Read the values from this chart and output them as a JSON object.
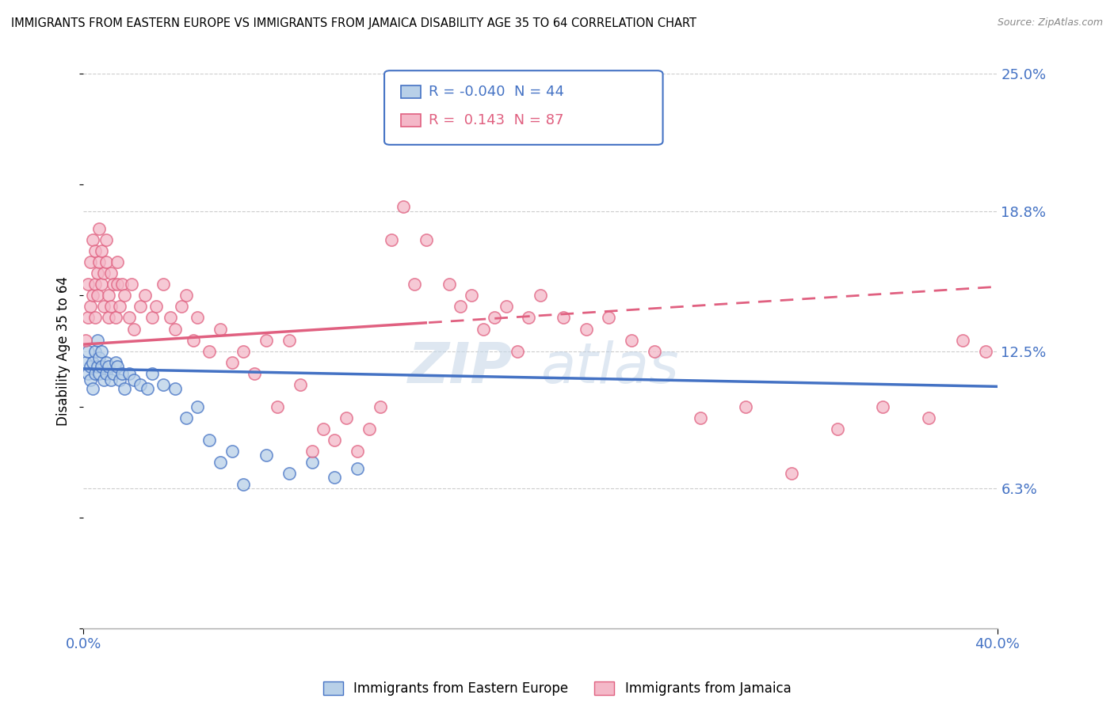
{
  "title": "IMMIGRANTS FROM EASTERN EUROPE VS IMMIGRANTS FROM JAMAICA DISABILITY AGE 35 TO 64 CORRELATION CHART",
  "source": "Source: ZipAtlas.com",
  "ylabel": "Disability Age 35 to 64",
  "xlim": [
    0.0,
    0.4
  ],
  "ylim": [
    0.0,
    0.25
  ],
  "ytick_vals": [
    0.063,
    0.125,
    0.188,
    0.25
  ],
  "ytick_labels": [
    "6.3%",
    "12.5%",
    "18.8%",
    "25.0%"
  ],
  "series1_fill": "#b8d0e8",
  "series1_edge": "#4472c4",
  "series2_fill": "#f4b8c8",
  "series2_edge": "#e06080",
  "trend1_color": "#4472c4",
  "trend2_color": "#e06080",
  "R1": -0.04,
  "N1": 44,
  "R2": 0.143,
  "N2": 87,
  "legend1": "Immigrants from Eastern Europe",
  "legend2": "Immigrants from Jamaica",
  "ee_x": [
    0.001,
    0.002,
    0.002,
    0.003,
    0.003,
    0.004,
    0.004,
    0.005,
    0.005,
    0.006,
    0.006,
    0.007,
    0.007,
    0.008,
    0.008,
    0.009,
    0.01,
    0.01,
    0.011,
    0.012,
    0.013,
    0.014,
    0.015,
    0.016,
    0.017,
    0.018,
    0.02,
    0.022,
    0.025,
    0.028,
    0.03,
    0.035,
    0.04,
    0.045,
    0.05,
    0.055,
    0.06,
    0.065,
    0.07,
    0.08,
    0.09,
    0.1,
    0.11,
    0.12
  ],
  "ee_y": [
    0.12,
    0.125,
    0.115,
    0.118,
    0.112,
    0.12,
    0.108,
    0.115,
    0.125,
    0.118,
    0.13,
    0.115,
    0.122,
    0.118,
    0.125,
    0.112,
    0.115,
    0.12,
    0.118,
    0.112,
    0.115,
    0.12,
    0.118,
    0.112,
    0.115,
    0.108,
    0.115,
    0.112,
    0.11,
    0.108,
    0.115,
    0.11,
    0.108,
    0.095,
    0.1,
    0.085,
    0.075,
    0.08,
    0.065,
    0.078,
    0.07,
    0.075,
    0.068,
    0.072
  ],
  "jam_x": [
    0.001,
    0.002,
    0.002,
    0.003,
    0.003,
    0.004,
    0.004,
    0.005,
    0.005,
    0.005,
    0.006,
    0.006,
    0.007,
    0.007,
    0.008,
    0.008,
    0.009,
    0.009,
    0.01,
    0.01,
    0.011,
    0.011,
    0.012,
    0.012,
    0.013,
    0.014,
    0.015,
    0.015,
    0.016,
    0.017,
    0.018,
    0.02,
    0.021,
    0.022,
    0.025,
    0.027,
    0.03,
    0.032,
    0.035,
    0.038,
    0.04,
    0.043,
    0.045,
    0.048,
    0.05,
    0.055,
    0.06,
    0.065,
    0.07,
    0.075,
    0.08,
    0.085,
    0.09,
    0.095,
    0.1,
    0.105,
    0.11,
    0.115,
    0.12,
    0.125,
    0.13,
    0.135,
    0.14,
    0.145,
    0.15,
    0.16,
    0.165,
    0.17,
    0.175,
    0.18,
    0.185,
    0.19,
    0.195,
    0.2,
    0.21,
    0.22,
    0.23,
    0.24,
    0.25,
    0.27,
    0.29,
    0.31,
    0.33,
    0.35,
    0.37,
    0.385,
    0.395
  ],
  "jam_y": [
    0.13,
    0.155,
    0.14,
    0.165,
    0.145,
    0.15,
    0.175,
    0.155,
    0.17,
    0.14,
    0.16,
    0.15,
    0.165,
    0.18,
    0.155,
    0.17,
    0.145,
    0.16,
    0.165,
    0.175,
    0.15,
    0.14,
    0.16,
    0.145,
    0.155,
    0.14,
    0.165,
    0.155,
    0.145,
    0.155,
    0.15,
    0.14,
    0.155,
    0.135,
    0.145,
    0.15,
    0.14,
    0.145,
    0.155,
    0.14,
    0.135,
    0.145,
    0.15,
    0.13,
    0.14,
    0.125,
    0.135,
    0.12,
    0.125,
    0.115,
    0.13,
    0.1,
    0.13,
    0.11,
    0.08,
    0.09,
    0.085,
    0.095,
    0.08,
    0.09,
    0.1,
    0.175,
    0.19,
    0.155,
    0.175,
    0.155,
    0.145,
    0.15,
    0.135,
    0.14,
    0.145,
    0.125,
    0.14,
    0.15,
    0.14,
    0.135,
    0.14,
    0.13,
    0.125,
    0.095,
    0.1,
    0.07,
    0.09,
    0.1,
    0.095,
    0.13,
    0.125
  ],
  "trend1_intercept": 0.117,
  "trend1_slope": -0.02,
  "trend2_intercept": 0.128,
  "trend2_slope": 0.065
}
